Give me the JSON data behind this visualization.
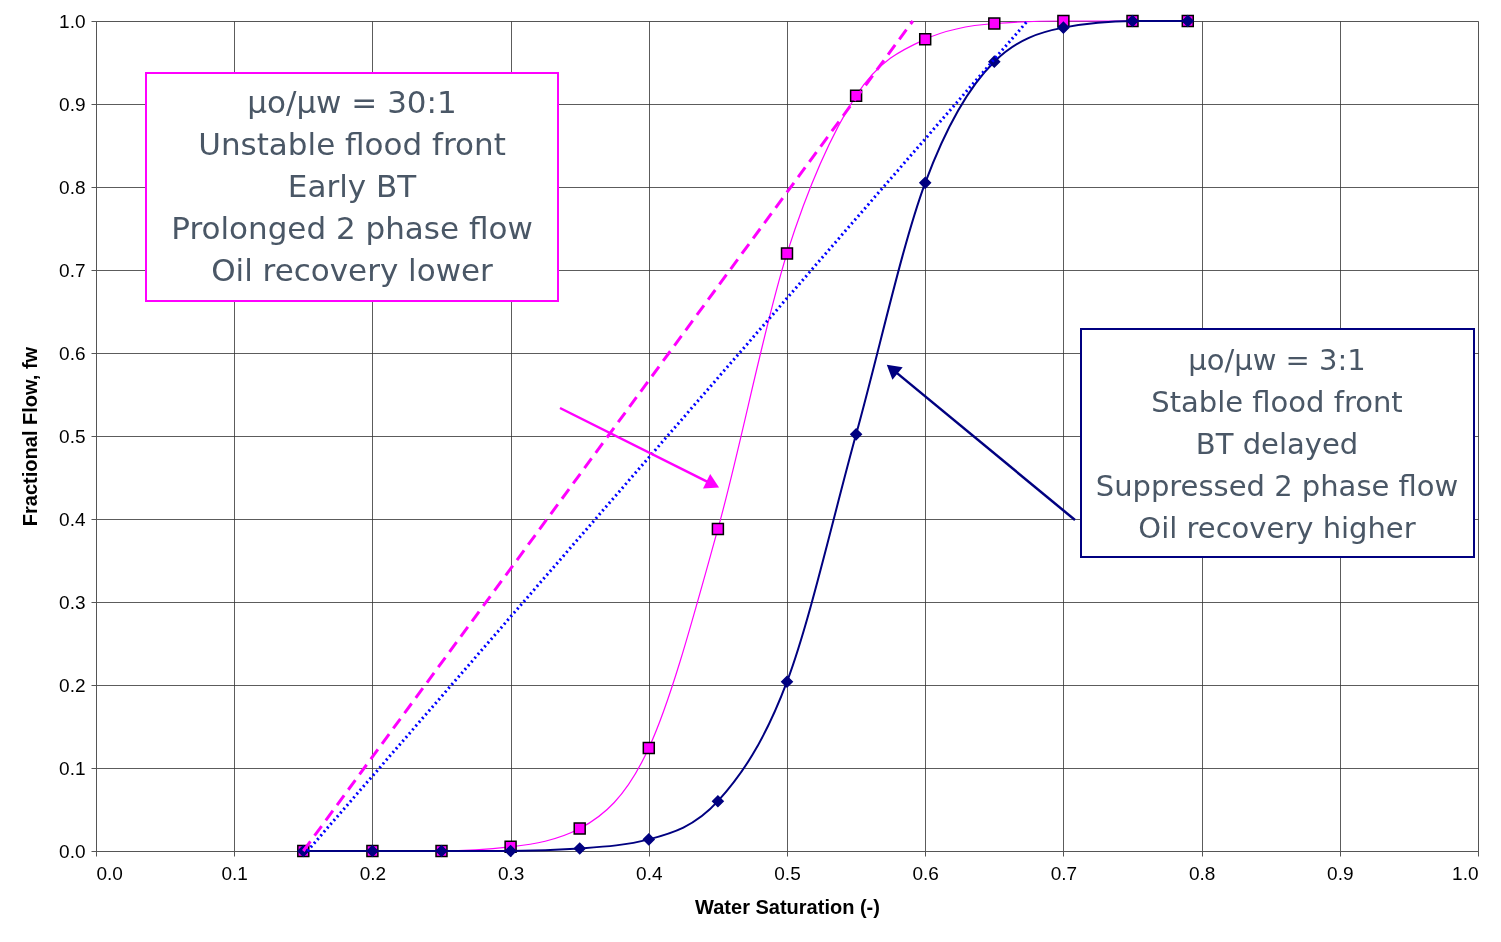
{
  "chart_data": {
    "type": "line",
    "xlabel": "Water Saturation (-)",
    "ylabel": "Fractional Flow, fw",
    "xlim": [
      0.0,
      1.0
    ],
    "xticks": [
      {
        "value": 0,
        "label": "0.0"
      },
      0.1,
      0.2,
      0.3,
      0.4,
      0.5,
      0.6,
      0.7,
      0.8,
      0.9,
      {
        "value": 1,
        "label": "1.0"
      }
    ],
    "ylim": [
      0.0,
      1.0
    ],
    "yticks": [
      {
        "value": 0,
        "label": "0.0"
      },
      0.1,
      0.2,
      0.3,
      0.4,
      0.5,
      0.6,
      0.7,
      0.8,
      0.9,
      {
        "value": 1,
        "label": "1.0"
      }
    ],
    "grid": true,
    "series": [
      {
        "color": "#ff00ff",
        "marker": "square",
        "line_style": "solid",
        "x": [
          0.15,
          0.2,
          0.25,
          0.3,
          0.35,
          0.4,
          0.45,
          0.5,
          0.55,
          0.6,
          0.65,
          0.7,
          0.75,
          0.79
        ],
        "values": [
          0.0,
          0.0,
          0.0,
          0.005,
          0.027,
          0.124,
          0.388,
          0.72,
          0.91,
          0.978,
          0.997,
          1.0,
          1.0,
          1.0
        ]
      },
      {
        "color": "#000080",
        "marker": "diamond",
        "line_style": "solid",
        "x": [
          0.15,
          0.2,
          0.25,
          0.3,
          0.35,
          0.4,
          0.45,
          0.5,
          0.55,
          0.6,
          0.65,
          0.7,
          0.75,
          0.79
        ],
        "values": [
          0.0,
          0.0,
          0.0,
          0.0,
          0.003,
          0.014,
          0.06,
          0.204,
          0.502,
          0.805,
          0.951,
          0.992,
          1.0,
          1.0
        ]
      },
      {
        "color": "#ff00ff",
        "marker": "none",
        "line_style": "dashed",
        "x": [
          0.15,
          0.591
        ],
        "values": [
          0.0,
          1.0
        ]
      },
      {
        "color": "#0000ff",
        "marker": "none",
        "line_style": "dotted",
        "x": [
          0.153,
          0.674
        ],
        "values": [
          0.0,
          1.0
        ]
      }
    ],
    "annotations": [
      "μo/μw = 30:1\nUnstable flood front\nEarly BT\nProlonged 2 phase flow\nOil recovery lower",
      "μo/μw = 3:1\nStable flood front\nBT delayed\nSuppressed 2 phase flow\nOil recovery higher"
    ]
  }
}
